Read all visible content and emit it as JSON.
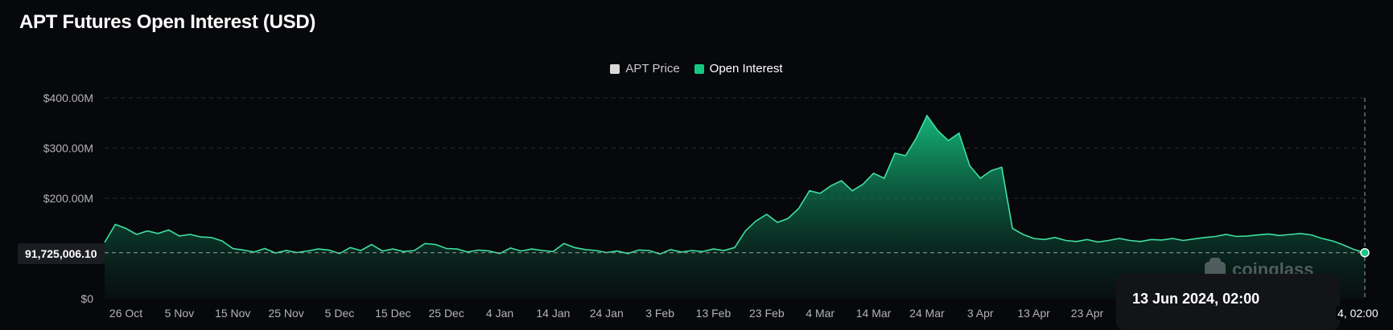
{
  "chart_data": {
    "type": "area",
    "title": "APT Futures Open Interest (USD)",
    "legend": [
      {
        "name": "APT Price",
        "color": "#d9d9d9",
        "active": false
      },
      {
        "name": "Open Interest",
        "color": "#16c784",
        "active": true
      }
    ],
    "y_ticks": [
      "$0",
      "$200.00M",
      "$300.00M",
      "$400.00M"
    ],
    "y_tick_values": [
      0,
      200,
      300,
      400
    ],
    "ylim": [
      0,
      400
    ],
    "y_unit": "M USD",
    "x_ticks": [
      "26 Oct",
      "5 Nov",
      "15 Nov",
      "25 Nov",
      "5 Dec",
      "15 Dec",
      "25 Dec",
      "4 Jan",
      "14 Jan",
      "24 Jan",
      "3 Feb",
      "13 Feb",
      "23 Feb",
      "4 Mar",
      "14 Mar",
      "24 Mar",
      "3 Apr",
      "13 Apr",
      "23 Apr"
    ],
    "x_tick_days": [
      4,
      14,
      24,
      34,
      44,
      54,
      64,
      74,
      84,
      94,
      104,
      114,
      124,
      134,
      144,
      154,
      164,
      174,
      184
    ],
    "x_range_days": [
      0,
      236
    ],
    "x_start_date": "2023-10-22",
    "series": [
      {
        "name": "Open Interest",
        "color": "#16c784",
        "x": [
          0,
          2,
          4,
          6,
          8,
          10,
          12,
          14,
          16,
          18,
          20,
          22,
          24,
          26,
          28,
          30,
          32,
          34,
          36,
          38,
          40,
          42,
          44,
          46,
          48,
          50,
          52,
          54,
          56,
          58,
          60,
          62,
          64,
          66,
          68,
          70,
          72,
          74,
          76,
          78,
          80,
          82,
          84,
          86,
          88,
          90,
          92,
          94,
          96,
          98,
          100,
          102,
          104,
          106,
          108,
          110,
          112,
          114,
          116,
          118,
          120,
          122,
          124,
          126,
          128,
          130,
          132,
          134,
          136,
          138,
          140,
          142,
          144,
          146,
          148,
          150,
          152,
          154,
          156,
          158,
          160,
          162,
          164,
          166,
          168,
          170,
          172,
          174,
          176,
          178,
          180,
          182,
          184,
          186,
          188,
          190,
          192,
          194,
          196,
          198,
          200,
          202,
          204,
          206,
          208,
          210,
          212,
          214,
          216,
          218,
          220,
          222,
          224,
          226,
          228,
          230,
          232,
          234,
          236
        ],
        "values": [
          112,
          148,
          140,
          128,
          135,
          130,
          137,
          125,
          128,
          123,
          122,
          115,
          100,
          97,
          93,
          100,
          91,
          96,
          92,
          95,
          99,
          97,
          90,
          102,
          96,
          108,
          95,
          99,
          94,
          96,
          110,
          108,
          100,
          99,
          93,
          97,
          95,
          90,
          101,
          95,
          99,
          96,
          94,
          110,
          102,
          98,
          96,
          92,
          95,
          90,
          97,
          96,
          89,
          98,
          93,
          96,
          94,
          99,
          96,
          102,
          135,
          155,
          168,
          152,
          160,
          180,
          215,
          210,
          225,
          235,
          215,
          228,
          250,
          240,
          290,
          285,
          320,
          365,
          335,
          315,
          330,
          265,
          240,
          255,
          262,
          140,
          128,
          120,
          118,
          122,
          116,
          114,
          118,
          113,
          116,
          120,
          116,
          114,
          118,
          117,
          120,
          116,
          119,
          122,
          124,
          128,
          124,
          125,
          127,
          129,
          126,
          128,
          130,
          127,
          120,
          115,
          107,
          98,
          91.7
        ]
      }
    ],
    "crosshair": {
      "value_label": "91,725,006.10",
      "date_label": "13 Jun 2024, 02:00",
      "x_axis_label": "4, 02:00"
    },
    "grid": true,
    "watermark": "coinglass"
  }
}
